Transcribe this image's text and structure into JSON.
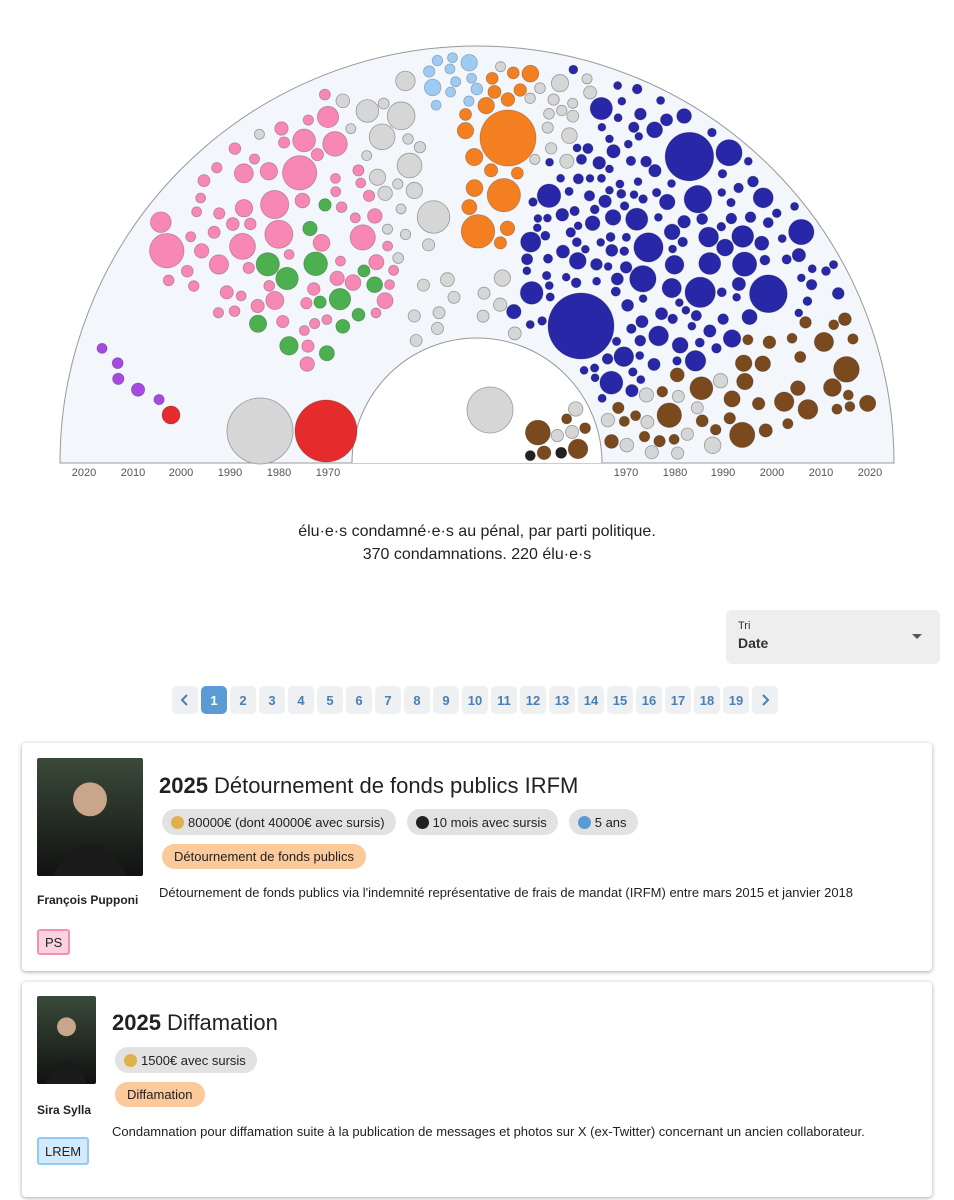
{
  "chart": {
    "left_axis_labels": [
      "2020",
      "2010",
      "2000",
      "1990",
      "1980",
      "1970"
    ],
    "right_axis_labels": [
      "1970",
      "1980",
      "1990",
      "2000",
      "2010",
      "2020"
    ]
  },
  "caption": {
    "line1": "élu·e·s condamné·e·s au pénal, par parti politique.",
    "line2": "370 condamnations. 220 élu·e·s"
  },
  "sort": {
    "label": "Tri",
    "value": "Date"
  },
  "pagination": {
    "pages": [
      1,
      2,
      3,
      4,
      5,
      6,
      7,
      8,
      9,
      10,
      11,
      12,
      13,
      14,
      15,
      16,
      17,
      18,
      19
    ],
    "current": 0
  },
  "cards": [
    {
      "year": 2025,
      "title": "Détournement de fonds publics IRFM",
      "name": "François Pupponi",
      "party": "PS",
      "party_color": "#f48fb1",
      "badges": [
        "80000€ (dont 40000€ avec sursis)",
        "10 mois avec sursis",
        "5 ans"
      ],
      "tags": [
        "Détournement de fonds publics"
      ],
      "description": "Détournement de fonds publics via l'indemnité représentative de frais de mandat (IRFM) entre mars 2015 et janvier 2018"
    },
    {
      "year": 2025,
      "title": "Diffamation",
      "name": "Sira Sylla",
      "party": "LREM",
      "party_color": "#90caf9",
      "badges": [
        "1500€ avec sursis"
      ],
      "tags": [
        "Diffamation"
      ],
      "description": "Condamnation pour diffamation suite à la publication de messages et photos sur X (ex-Twitter) concernant un ancien collaborateur."
    }
  ]
}
